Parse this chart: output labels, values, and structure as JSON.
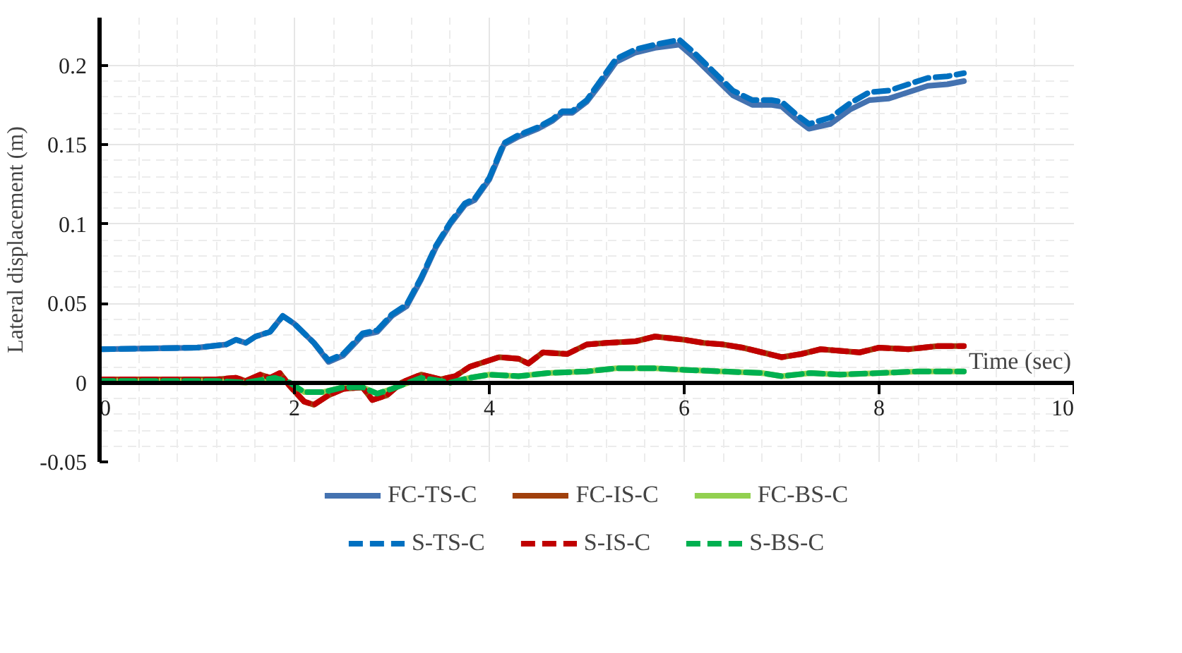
{
  "chart_data": {
    "type": "line",
    "xlabel": "Time (sec)",
    "ylabel": "Lateral displacement (m)",
    "xlim": [
      0,
      10
    ],
    "ylim": [
      -0.05,
      0.23
    ],
    "xticks": [
      0,
      2,
      4,
      6,
      8,
      10
    ],
    "yticks": [
      -0.05,
      0,
      0.05,
      0.1,
      0.15,
      0.2
    ],
    "grid": true,
    "legend": "bottom",
    "marker": "none",
    "series": [
      {
        "name": "FC-TS-C",
        "color": "#4472b0",
        "line_style": "solid",
        "x": [
          0,
          1.0,
          1.3,
          1.4,
          1.5,
          1.6,
          1.75,
          1.88,
          2.0,
          2.2,
          2.35,
          2.5,
          2.7,
          2.85,
          3.0,
          3.15,
          3.3,
          3.45,
          3.6,
          3.75,
          3.85,
          4.0,
          4.15,
          4.3,
          4.5,
          4.65,
          4.75,
          4.85,
          5.0,
          5.15,
          5.3,
          5.5,
          5.7,
          5.95,
          6.1,
          6.3,
          6.5,
          6.7,
          6.9,
          7.0,
          7.15,
          7.28,
          7.5,
          7.7,
          7.9,
          8.1,
          8.3,
          8.5,
          8.7,
          8.87
        ],
        "values": [
          0.021,
          0.022,
          0.024,
          0.027,
          0.025,
          0.029,
          0.032,
          0.042,
          0.037,
          0.025,
          0.013,
          0.017,
          0.03,
          0.032,
          0.042,
          0.048,
          0.065,
          0.085,
          0.1,
          0.112,
          0.115,
          0.128,
          0.15,
          0.155,
          0.16,
          0.165,
          0.17,
          0.17,
          0.177,
          0.189,
          0.202,
          0.208,
          0.211,
          0.213,
          0.205,
          0.193,
          0.181,
          0.175,
          0.175,
          0.174,
          0.166,
          0.16,
          0.163,
          0.172,
          0.178,
          0.179,
          0.183,
          0.187,
          0.188,
          0.19
        ]
      },
      {
        "name": "FC-IS-C",
        "color": "#a0400c",
        "line_style": "solid",
        "x": [
          0,
          1.2,
          1.4,
          1.5,
          1.65,
          1.75,
          1.85,
          1.95,
          2.1,
          2.2,
          2.35,
          2.5,
          2.7,
          2.8,
          2.95,
          3.1,
          3.3,
          3.5,
          3.65,
          3.8,
          3.95,
          4.1,
          4.3,
          4.4,
          4.55,
          4.8,
          5.0,
          5.2,
          5.5,
          5.7,
          6.0,
          6.2,
          6.4,
          6.6,
          6.8,
          7.0,
          7.2,
          7.4,
          7.6,
          7.8,
          8.0,
          8.3,
          8.6,
          8.87
        ],
        "values": [
          0.002,
          0.002,
          0.003,
          0.001,
          0.005,
          0.003,
          0.006,
          -0.002,
          -0.012,
          -0.014,
          -0.008,
          -0.004,
          -0.003,
          -0.011,
          -0.008,
          0,
          0.005,
          0.002,
          0.004,
          0.01,
          0.013,
          0.016,
          0.015,
          0.012,
          0.019,
          0.018,
          0.024,
          0.025,
          0.026,
          0.029,
          0.027,
          0.025,
          0.024,
          0.022,
          0.019,
          0.016,
          0.018,
          0.021,
          0.02,
          0.019,
          0.022,
          0.021,
          0.023,
          0.023
        ]
      },
      {
        "name": "FC-BS-C",
        "color": "#92d050",
        "line_style": "solid",
        "x": [
          0,
          1.2,
          1.5,
          1.8,
          1.95,
          2.1,
          2.3,
          2.5,
          2.7,
          2.85,
          3.0,
          3.3,
          3.6,
          3.8,
          4.0,
          4.3,
          4.6,
          5.0,
          5.3,
          5.7,
          6.0,
          6.4,
          6.8,
          7.0,
          7.3,
          7.6,
          8.0,
          8.4,
          8.87
        ],
        "values": [
          0.001,
          0.001,
          0,
          0.003,
          0,
          -0.006,
          -0.006,
          -0.003,
          -0.003,
          -0.007,
          -0.004,
          0.003,
          0,
          0.003,
          0.005,
          0.004,
          0.006,
          0.007,
          0.009,
          0.009,
          0.008,
          0.007,
          0.006,
          0.004,
          0.006,
          0.005,
          0.006,
          0.007,
          0.007
        ]
      },
      {
        "name": "S-TS-C",
        "color": "#0070c0",
        "line_style": "dashed",
        "x": [
          0,
          1.0,
          1.3,
          1.4,
          1.5,
          1.6,
          1.75,
          1.88,
          2.0,
          2.2,
          2.35,
          2.5,
          2.7,
          2.85,
          3.0,
          3.15,
          3.3,
          3.45,
          3.6,
          3.75,
          3.85,
          4.0,
          4.15,
          4.3,
          4.5,
          4.65,
          4.75,
          4.85,
          5.0,
          5.15,
          5.3,
          5.5,
          5.7,
          5.95,
          6.1,
          6.3,
          6.5,
          6.7,
          6.9,
          7.0,
          7.15,
          7.28,
          7.5,
          7.7,
          7.9,
          8.1,
          8.3,
          8.5,
          8.7,
          8.87
        ],
        "values": [
          0.021,
          0.022,
          0.024,
          0.027,
          0.025,
          0.029,
          0.032,
          0.042,
          0.037,
          0.025,
          0.014,
          0.018,
          0.031,
          0.033,
          0.043,
          0.049,
          0.066,
          0.086,
          0.101,
          0.113,
          0.116,
          0.129,
          0.151,
          0.156,
          0.161,
          0.166,
          0.171,
          0.171,
          0.178,
          0.191,
          0.204,
          0.21,
          0.213,
          0.216,
          0.208,
          0.196,
          0.184,
          0.178,
          0.178,
          0.177,
          0.169,
          0.163,
          0.167,
          0.176,
          0.183,
          0.184,
          0.188,
          0.192,
          0.193,
          0.195
        ]
      },
      {
        "name": "S-IS-C",
        "color": "#c00000",
        "line_style": "dashed",
        "x": [
          0,
          1.2,
          1.4,
          1.5,
          1.65,
          1.75,
          1.85,
          1.95,
          2.1,
          2.2,
          2.35,
          2.5,
          2.7,
          2.8,
          2.95,
          3.1,
          3.3,
          3.5,
          3.65,
          3.8,
          3.95,
          4.1,
          4.3,
          4.4,
          4.55,
          4.8,
          5.0,
          5.2,
          5.5,
          5.7,
          6.0,
          6.2,
          6.4,
          6.6,
          6.8,
          7.0,
          7.2,
          7.4,
          7.6,
          7.8,
          8.0,
          8.3,
          8.6,
          8.87
        ],
        "values": [
          0.002,
          0.002,
          0.003,
          0.001,
          0.005,
          0.003,
          0.006,
          -0.002,
          -0.012,
          -0.014,
          -0.008,
          -0.004,
          -0.003,
          -0.011,
          -0.008,
          0,
          0.005,
          0.002,
          0.004,
          0.01,
          0.013,
          0.016,
          0.015,
          0.012,
          0.019,
          0.018,
          0.024,
          0.025,
          0.026,
          0.029,
          0.027,
          0.025,
          0.024,
          0.022,
          0.019,
          0.016,
          0.018,
          0.021,
          0.02,
          0.019,
          0.022,
          0.021,
          0.023,
          0.023
        ]
      },
      {
        "name": "S-BS-C",
        "color": "#00b050",
        "line_style": "dashed",
        "x": [
          0,
          1.2,
          1.5,
          1.8,
          1.95,
          2.1,
          2.3,
          2.5,
          2.7,
          2.85,
          3.0,
          3.3,
          3.6,
          3.8,
          4.0,
          4.3,
          4.6,
          5.0,
          5.3,
          5.7,
          6.0,
          6.4,
          6.8,
          7.0,
          7.3,
          7.6,
          8.0,
          8.4,
          8.87
        ],
        "values": [
          0.001,
          0.001,
          0,
          0.003,
          0,
          -0.006,
          -0.006,
          -0.003,
          -0.003,
          -0.007,
          -0.004,
          0.003,
          0,
          0.003,
          0.005,
          0.004,
          0.006,
          0.007,
          0.009,
          0.009,
          0.008,
          0.007,
          0.006,
          0.004,
          0.006,
          0.005,
          0.006,
          0.007,
          0.007
        ]
      }
    ]
  }
}
